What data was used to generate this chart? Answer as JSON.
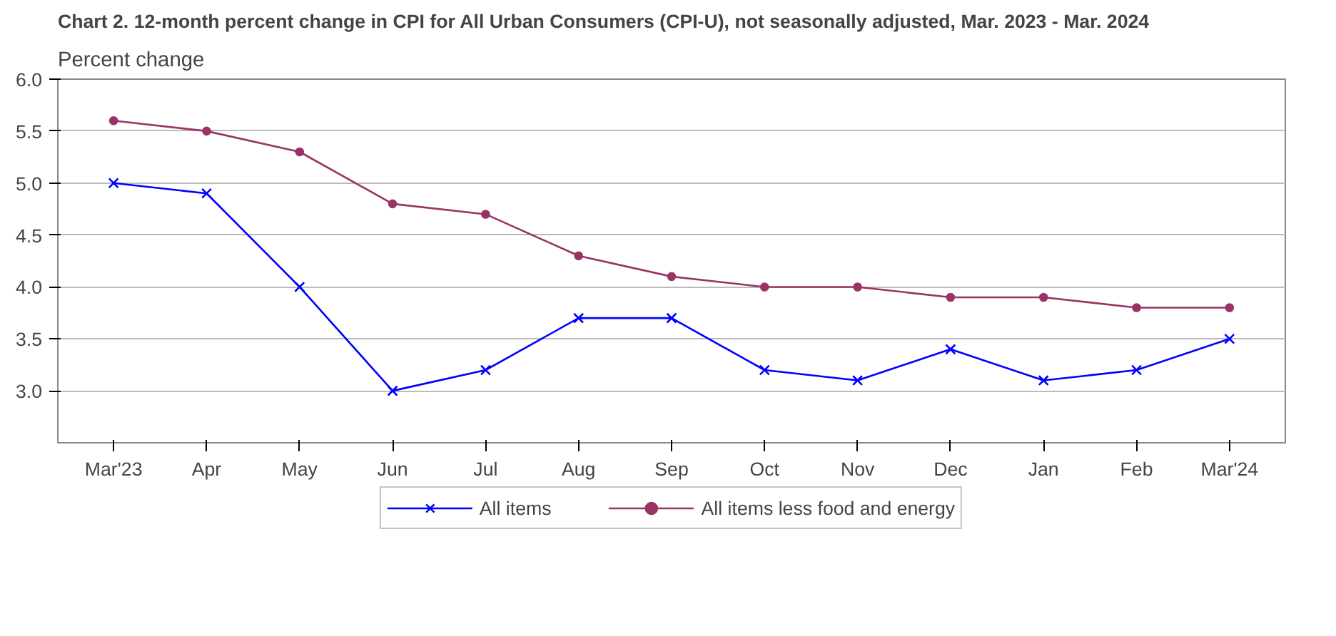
{
  "chart_data": {
    "type": "line",
    "title": "Chart 2. 12-month percent change in CPI for All Urban Consumers (CPI-U), not seasonally adjusted, Mar. 2023 - Mar. 2024",
    "ylabel": "Percent change",
    "categories": [
      "Mar'23",
      "Apr",
      "May",
      "Jun",
      "Jul",
      "Aug",
      "Sep",
      "Oct",
      "Nov",
      "Dec",
      "Jan",
      "Feb",
      "Mar'24"
    ],
    "series": [
      {
        "name": "All items",
        "color": "#0000ff",
        "marker": "cross",
        "values": [
          5.0,
          4.9,
          4.0,
          3.0,
          3.2,
          3.7,
          3.7,
          3.2,
          3.1,
          3.4,
          3.1,
          3.2,
          3.5
        ]
      },
      {
        "name": "All items less food and energy",
        "color": "#993366",
        "marker": "circle",
        "values": [
          5.6,
          5.5,
          5.3,
          4.8,
          4.7,
          4.3,
          4.1,
          4.0,
          4.0,
          3.9,
          3.9,
          3.8,
          3.8
        ]
      }
    ],
    "ylim": [
      2.5,
      6.0
    ],
    "yticks": [
      {
        "value": 3.0,
        "label": "3.0"
      },
      {
        "value": 3.5,
        "label": "3.5"
      },
      {
        "value": 4.0,
        "label": "4.0"
      },
      {
        "value": 4.5,
        "label": "4.5"
      },
      {
        "value": 5.0,
        "label": "5.0"
      },
      {
        "value": 5.5,
        "label": "5.5"
      },
      {
        "value": 6.0,
        "label": "6.0"
      }
    ],
    "grid": "y",
    "legend": "bottom",
    "line_style": "solid"
  }
}
